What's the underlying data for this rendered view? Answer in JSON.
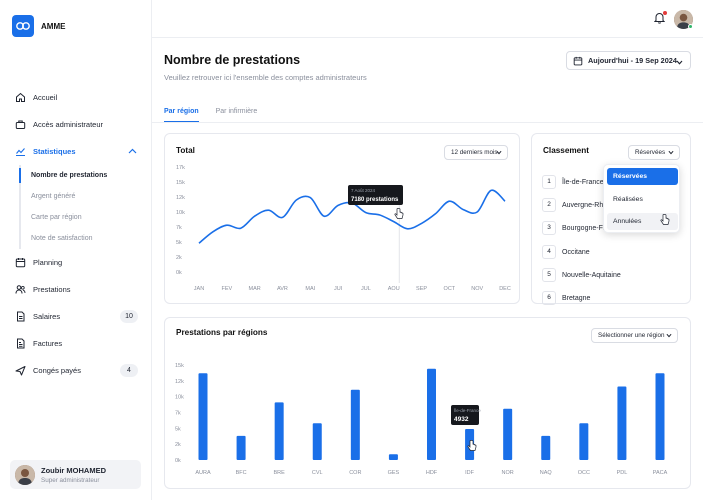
{
  "brand": {
    "name": "AMME",
    "color": "#1a6fe8",
    "icon": "link-icon"
  },
  "sidebar": {
    "items": [
      {
        "label": "Accueil",
        "icon": "home-icon"
      },
      {
        "label": "Accès administrateur",
        "icon": "briefcase-icon"
      },
      {
        "label": "Statistiques",
        "icon": "chart-line-icon",
        "active": true,
        "expanded": true
      },
      {
        "label": "Planning",
        "icon": "calendar-icon"
      },
      {
        "label": "Prestations",
        "icon": "users-icon"
      },
      {
        "label": "Salaires",
        "icon": "document-icon",
        "badge": "10"
      },
      {
        "label": "Factures",
        "icon": "invoice-icon"
      },
      {
        "label": "Congés payés",
        "icon": "plane-icon",
        "badge": "4"
      }
    ],
    "stats_sub": [
      {
        "label": "Nombre de prestations",
        "active": true
      },
      {
        "label": "Argent généré"
      },
      {
        "label": "Carte par région"
      },
      {
        "label": "Note de satisfaction"
      }
    ],
    "user": {
      "name": "Zoubir MOHAMED",
      "role": "Super administrateur"
    }
  },
  "header": {
    "title": "Nombre de prestations",
    "subtitle": "Veuillez retrouver ici l'ensemble des comptes administrateurs",
    "date_label": "Aujourd'hui - 19 Sep 2024"
  },
  "tabs": [
    {
      "label": "Par région",
      "active": true
    },
    {
      "label": "Par infirmière"
    }
  ],
  "total_card": {
    "title": "Total",
    "period": "12 derniers mois",
    "tooltip": {
      "date": "7 Août 2024",
      "value": "7180 prestations"
    }
  },
  "ranking_card": {
    "title": "Classement",
    "filter": "Réservées",
    "items": [
      {
        "rank": "1",
        "label": "Île-de-France"
      },
      {
        "rank": "2",
        "label": "Auvergne-Rhône-Alpes"
      },
      {
        "rank": "3",
        "label": "Bourgogne-Franche-Comté"
      },
      {
        "rank": "4",
        "label": "Occitane"
      },
      {
        "rank": "5",
        "label": "Nouvelle-Aquitaine"
      },
      {
        "rank": "6",
        "label": "Bretagne"
      }
    ],
    "dropdown": [
      {
        "label": "Réservées",
        "active": true
      },
      {
        "label": "Réalisées"
      },
      {
        "label": "Annulées"
      }
    ]
  },
  "regions_card": {
    "title": "Prestations par régions",
    "select": "Sélectionner une région",
    "tooltip": {
      "label": "Île-de-France",
      "value": "4932"
    }
  },
  "chart_data": [
    {
      "type": "line",
      "title": "Total",
      "categories": [
        "JAN",
        "FEV",
        "MAR",
        "AVR",
        "MAI",
        "JUI",
        "JUL",
        "AOU",
        "SEP",
        "OCT",
        "NOV",
        "DEC"
      ],
      "y_ticks": [
        "17k",
        "15k",
        "12k",
        "10k",
        "7k",
        "5k",
        "2k",
        "0k"
      ],
      "x": [
        0,
        0.5,
        1,
        1.5,
        2,
        2.5,
        3,
        3.5,
        4,
        4.5,
        5,
        5.5,
        6,
        6.5,
        7,
        7.5,
        8,
        8.5,
        9,
        9.5,
        10,
        10.5,
        11
      ],
      "values": [
        4800,
        6700,
        7800,
        7300,
        9300,
        10300,
        9100,
        12000,
        12400,
        9300,
        11100,
        11500,
        9900,
        9500,
        8400,
        7200,
        8100,
        9700,
        11800,
        10400,
        10000,
        13600,
        11800
      ],
      "ylim": [
        0,
        17500
      ],
      "color": "#1a6fe8",
      "grid": false
    },
    {
      "type": "bar",
      "title": "Prestations par régions",
      "categories": [
        "AURA",
        "BFC",
        "BRE",
        "CVL",
        "COR",
        "GES",
        "HDF",
        "IDF",
        "NOR",
        "NAQ",
        "OCC",
        "PDL",
        "PACA"
      ],
      "y_ticks": [
        "15k",
        "12k",
        "10k",
        "7k",
        "5k",
        "2k",
        "0k"
      ],
      "values": [
        13700,
        3800,
        9100,
        5800,
        11100,
        900,
        14400,
        4900,
        8100,
        3800,
        5800,
        11600,
        13700
      ],
      "ylim": [
        0,
        15000
      ],
      "color": "#1a6fe8",
      "grid": false
    }
  ]
}
